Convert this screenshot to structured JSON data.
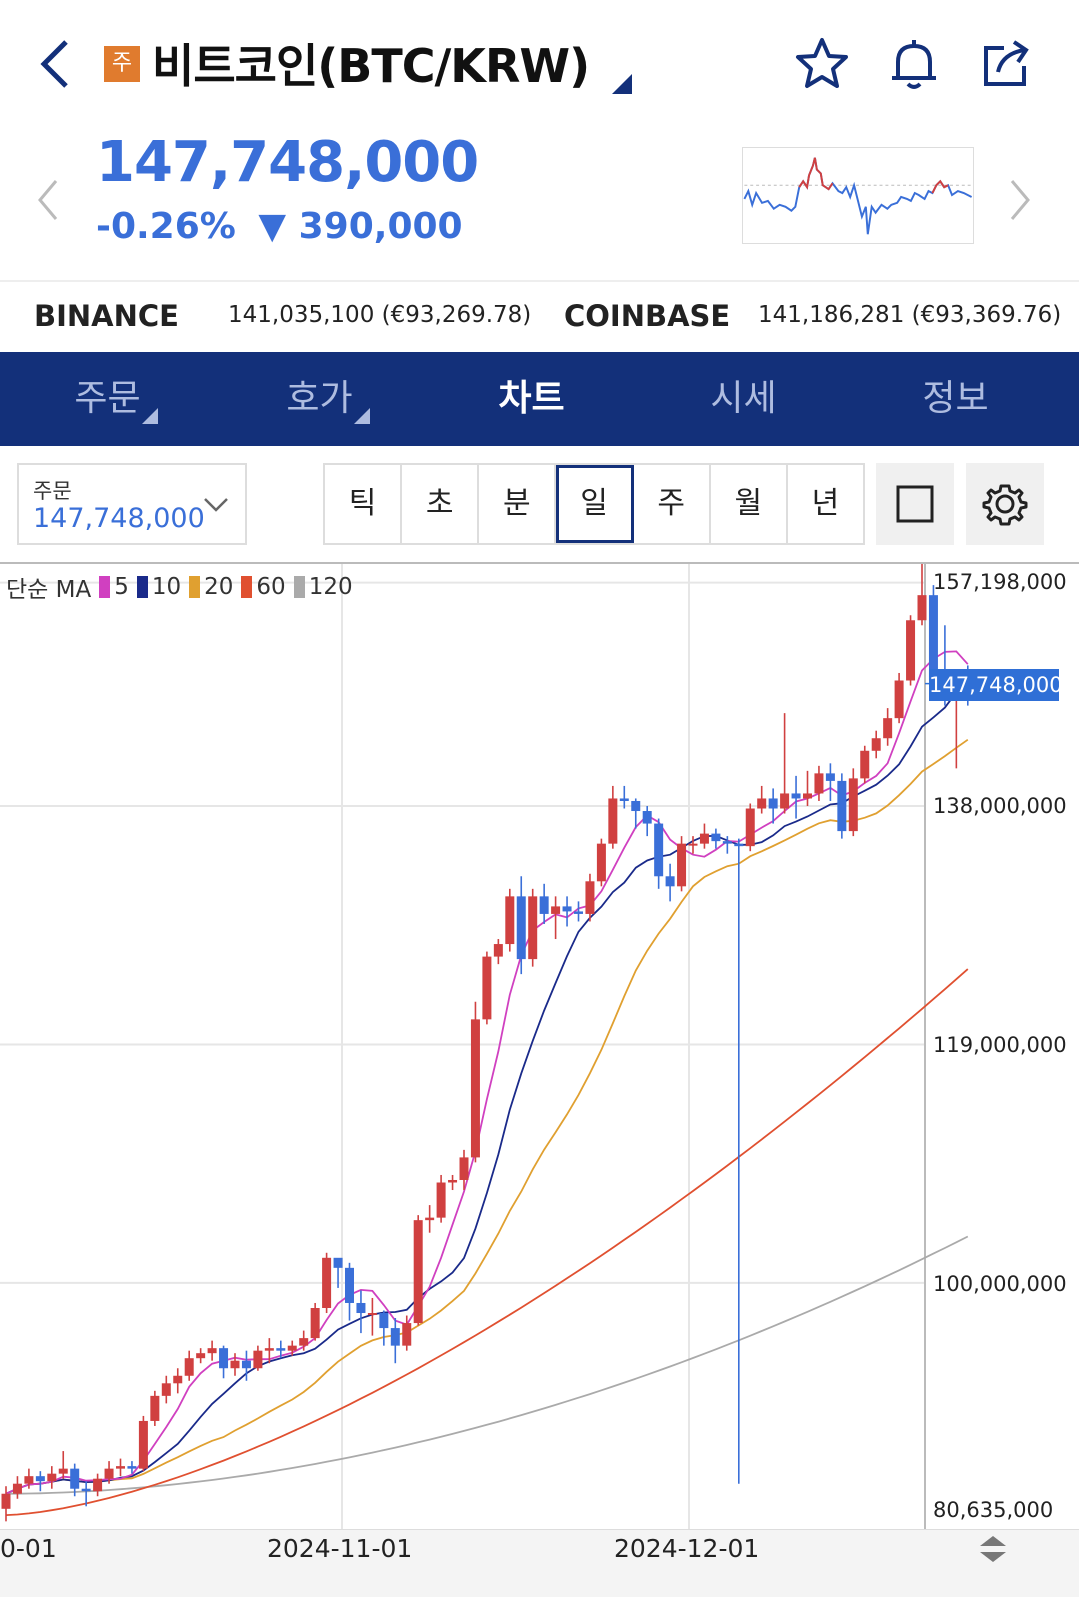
{
  "header": {
    "badge": "주",
    "title": "비트코인(BTC/KRW)",
    "icons": [
      "back-arrow-icon",
      "star-icon",
      "bell-icon",
      "share-icon"
    ]
  },
  "quote": {
    "price": "147,748,000",
    "change_pct": "-0.26%",
    "change_arrow": "▼",
    "change_amt": "390,000",
    "color_down": "#3a6fd8"
  },
  "exchanges": [
    {
      "name": "BINANCE",
      "value": "141,035,100 (€93,269.78)"
    },
    {
      "name": "COINBASE",
      "value": "141,186,281 (€93,369.76)"
    }
  ],
  "tabs": [
    {
      "label": "주문",
      "active": false,
      "dropdown": true
    },
    {
      "label": "호가",
      "active": false,
      "dropdown": true
    },
    {
      "label": "차트",
      "active": true,
      "dropdown": false
    },
    {
      "label": "시세",
      "active": false,
      "dropdown": false
    },
    {
      "label": "정보",
      "active": false,
      "dropdown": false
    }
  ],
  "order_select": {
    "label": "주문",
    "value": "147,748,000"
  },
  "periods": [
    {
      "label": "틱",
      "selected": false
    },
    {
      "label": "초",
      "selected": false
    },
    {
      "label": "분",
      "selected": false
    },
    {
      "label": "일",
      "selected": true
    },
    {
      "label": "주",
      "selected": false
    },
    {
      "label": "월",
      "selected": false
    },
    {
      "label": "년",
      "selected": false
    }
  ],
  "legend": {
    "prefix": "단순 MA",
    "items": [
      {
        "label": "5",
        "color": "#d040c0"
      },
      {
        "label": "10",
        "color": "#1a2a8a"
      },
      {
        "label": "20",
        "color": "#e0a030"
      },
      {
        "label": "60",
        "color": "#e05030"
      },
      {
        "label": "120",
        "color": "#aaaaaa"
      }
    ]
  },
  "chart_data": {
    "type": "candlestick",
    "y_ticks": [
      "157,198,000",
      "138,000,000",
      "119,000,000",
      "100,000,000",
      "80,635,000"
    ],
    "y_range": [
      80635000,
      157198000
    ],
    "current_price_label": "147,748,000",
    "x_ticks": [
      "0-01",
      "2024-11-01",
      "2024-12-01"
    ],
    "up_color": "#d04040",
    "down_color": "#3a6fd8",
    "candles": [
      [
        82.0,
        83.2,
        81.0,
        83.8
      ],
      [
        83.2,
        84.0,
        82.8,
        84.6
      ],
      [
        84.0,
        84.6,
        83.6,
        85.2
      ],
      [
        84.6,
        84.2,
        83.4,
        85.0
      ],
      [
        84.2,
        84.8,
        83.6,
        85.4
      ],
      [
        84.8,
        85.2,
        84.4,
        86.6
      ],
      [
        85.2,
        83.6,
        83.0,
        85.6
      ],
      [
        83.6,
        83.4,
        82.2,
        84.2
      ],
      [
        83.4,
        84.4,
        83.0,
        84.8
      ],
      [
        84.4,
        85.2,
        84.0,
        85.8
      ],
      [
        85.2,
        85.4,
        84.6,
        86.0
      ],
      [
        85.4,
        85.2,
        84.8,
        85.8
      ],
      [
        85.2,
        89.0,
        85.0,
        89.4
      ],
      [
        89.0,
        91.0,
        88.6,
        91.4
      ],
      [
        91.0,
        92.0,
        90.4,
        92.6
      ],
      [
        92.0,
        92.6,
        91.2,
        93.2
      ],
      [
        92.6,
        94.0,
        92.2,
        94.6
      ],
      [
        94.0,
        94.4,
        93.6,
        94.8
      ],
      [
        94.4,
        94.8,
        93.8,
        95.4
      ],
      [
        94.8,
        93.2,
        92.4,
        95.0
      ],
      [
        93.2,
        93.8,
        92.6,
        94.4
      ],
      [
        93.8,
        93.2,
        92.2,
        94.6
      ],
      [
        93.2,
        94.6,
        93.0,
        95.0
      ],
      [
        94.6,
        94.8,
        93.6,
        95.6
      ],
      [
        94.8,
        94.6,
        94.0,
        95.4
      ],
      [
        94.6,
        95.0,
        94.2,
        95.4
      ],
      [
        95.0,
        95.6,
        94.6,
        96.2
      ],
      [
        95.6,
        98.0,
        95.4,
        98.4
      ],
      [
        98.0,
        102.0,
        97.6,
        102.4
      ],
      [
        102.0,
        101.2,
        99.6,
        101.8
      ],
      [
        101.2,
        98.4,
        97.0,
        101.6
      ],
      [
        98.4,
        97.6,
        96.0,
        99.4
      ],
      [
        97.6,
        97.6,
        95.8,
        98.8
      ],
      [
        97.6,
        96.4,
        95.0,
        97.8
      ],
      [
        96.4,
        95.0,
        93.6,
        97.2
      ],
      [
        95.0,
        96.8,
        94.6,
        97.4
      ],
      [
        96.8,
        105.0,
        96.6,
        105.4
      ],
      [
        105.0,
        105.2,
        104.0,
        106.2
      ],
      [
        105.2,
        108.0,
        104.8,
        108.6
      ],
      [
        108.0,
        108.2,
        107.4,
        108.6
      ],
      [
        108.2,
        110.0,
        107.4,
        110.6
      ],
      [
        110.0,
        121.0,
        109.6,
        122.4
      ],
      [
        121.0,
        126.0,
        120.6,
        126.4
      ],
      [
        126.0,
        127.0,
        125.4,
        127.4
      ],
      [
        127.0,
        130.8,
        126.4,
        131.4
      ],
      [
        130.8,
        125.8,
        124.6,
        132.4
      ],
      [
        125.8,
        130.8,
        125.2,
        131.4
      ],
      [
        130.8,
        129.4,
        128.6,
        131.8
      ],
      [
        129.4,
        130.0,
        127.4,
        130.8
      ],
      [
        130.0,
        129.6,
        128.4,
        130.8
      ],
      [
        129.6,
        129.4,
        128.8,
        130.4
      ],
      [
        129.4,
        132.0,
        128.8,
        132.6
      ],
      [
        132.0,
        135.0,
        131.6,
        135.4
      ],
      [
        135.0,
        138.6,
        134.6,
        139.6
      ],
      [
        138.6,
        138.4,
        137.8,
        139.6
      ],
      [
        138.4,
        137.6,
        136.2,
        138.6
      ],
      [
        137.6,
        136.6,
        135.6,
        138.0
      ],
      [
        136.6,
        132.4,
        131.4,
        137.0
      ],
      [
        132.4,
        131.6,
        130.4,
        133.4
      ],
      [
        131.6,
        135.0,
        131.2,
        135.6
      ],
      [
        135.0,
        135.0,
        134.2,
        135.6
      ],
      [
        135.0,
        135.8,
        134.6,
        136.6
      ],
      [
        135.8,
        135.2,
        134.6,
        136.2
      ],
      [
        135.2,
        135.0,
        134.2,
        135.6
      ],
      [
        135.0,
        134.8,
        84.0,
        135.4
      ],
      [
        134.8,
        137.8,
        134.4,
        138.2
      ],
      [
        137.8,
        138.6,
        137.4,
        139.6
      ],
      [
        138.6,
        137.8,
        136.6,
        139.4
      ],
      [
        137.8,
        139.0,
        137.4,
        145.4
      ],
      [
        139.0,
        138.6,
        137.0,
        140.4
      ],
      [
        138.6,
        139.0,
        138.0,
        140.8
      ],
      [
        139.0,
        140.6,
        138.4,
        141.2
      ],
      [
        140.6,
        140.0,
        138.4,
        141.4
      ],
      [
        140.0,
        136.0,
        135.4,
        140.6
      ],
      [
        136.0,
        140.2,
        135.6,
        141.0
      ],
      [
        140.2,
        142.4,
        139.8,
        142.8
      ],
      [
        142.4,
        143.4,
        141.8,
        144.0
      ],
      [
        143.4,
        145.0,
        142.8,
        145.8
      ],
      [
        145.0,
        148.0,
        144.6,
        148.6
      ],
      [
        148.0,
        152.8,
        147.6,
        153.2
      ],
      [
        152.8,
        154.8,
        152.4,
        158.2
      ],
      [
        154.8,
        148.0,
        147.0,
        155.6
      ],
      [
        148.0,
        147.8,
        146.0,
        152.4
      ],
      [
        147.8,
        148.2,
        141.0,
        148.4
      ],
      [
        148.2,
        147.7,
        146.0,
        149.2
      ]
    ]
  }
}
